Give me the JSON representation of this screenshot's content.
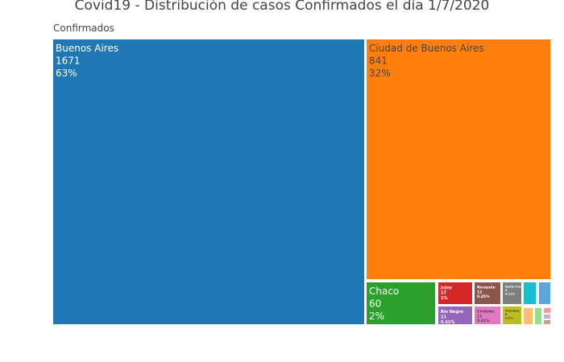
{
  "chart_data": {
    "type": "treemap",
    "title": "Covid19 - Distribución de casos Confirmados el día 1/7/2020",
    "root": "Confirmados",
    "items": [
      {
        "label": "Buenos Aires",
        "value": 1671,
        "percent": "63%",
        "color": "#1f77b4",
        "text_color": "#ffffff"
      },
      {
        "label": "Ciudad de Buenos Aires",
        "value": 841,
        "percent": "32%",
        "color": "#ff7f0e",
        "text_color": "#444444"
      },
      {
        "label": "Chaco",
        "value": 60,
        "percent": "2%",
        "color": "#2ca02c",
        "text_color": "#ffffff"
      },
      {
        "label": "Jujuy",
        "value": 17,
        "percent": "1%",
        "color": "#d62728",
        "text_color": "#ffffff"
      },
      {
        "label": "Neuquén",
        "value": 12,
        "percent": "0.45%",
        "color": "#8c564b",
        "text_color": "#ffffff"
      },
      {
        "label": "Santa Cruz",
        "value": 3,
        "percent": "0.11%",
        "color": "#7f7f7f",
        "text_color": "#ffffff"
      },
      {
        "label": "",
        "value": 3,
        "percent": "",
        "color": "#17becf",
        "text_color": "#ffffff"
      },
      {
        "label": "",
        "value": 3,
        "percent": "",
        "color": "#5da5da",
        "text_color": "#ffffff"
      },
      {
        "label": "Río Negro",
        "value": 11,
        "percent": "0.41%",
        "color": "#9467bd",
        "text_color": "#ffffff"
      },
      {
        "label": "Córdoba",
        "value": 11,
        "percent": "0.41%",
        "color": "#e377c2",
        "text_color": "#444444"
      },
      {
        "label": "Mendoza",
        "value": 6,
        "percent": "0.2%",
        "color": "#bcbd22",
        "text_color": "#444444"
      },
      {
        "label": "",
        "value": 1,
        "percent": "",
        "color": "#ffbb78",
        "text_color": "#444444"
      },
      {
        "label": "",
        "value": 1,
        "percent": "",
        "color": "#98df8a",
        "text_color": "#444444"
      },
      {
        "label": "",
        "value": 1,
        "percent": "",
        "color": "#ff9896",
        "text_color": "#444444"
      },
      {
        "label": "",
        "value": 1,
        "percent": "",
        "color": "#c5b0d5",
        "text_color": "#444444"
      },
      {
        "label": "",
        "value": 1,
        "percent": "",
        "color": "#c49c94",
        "text_color": "#444444"
      }
    ]
  }
}
